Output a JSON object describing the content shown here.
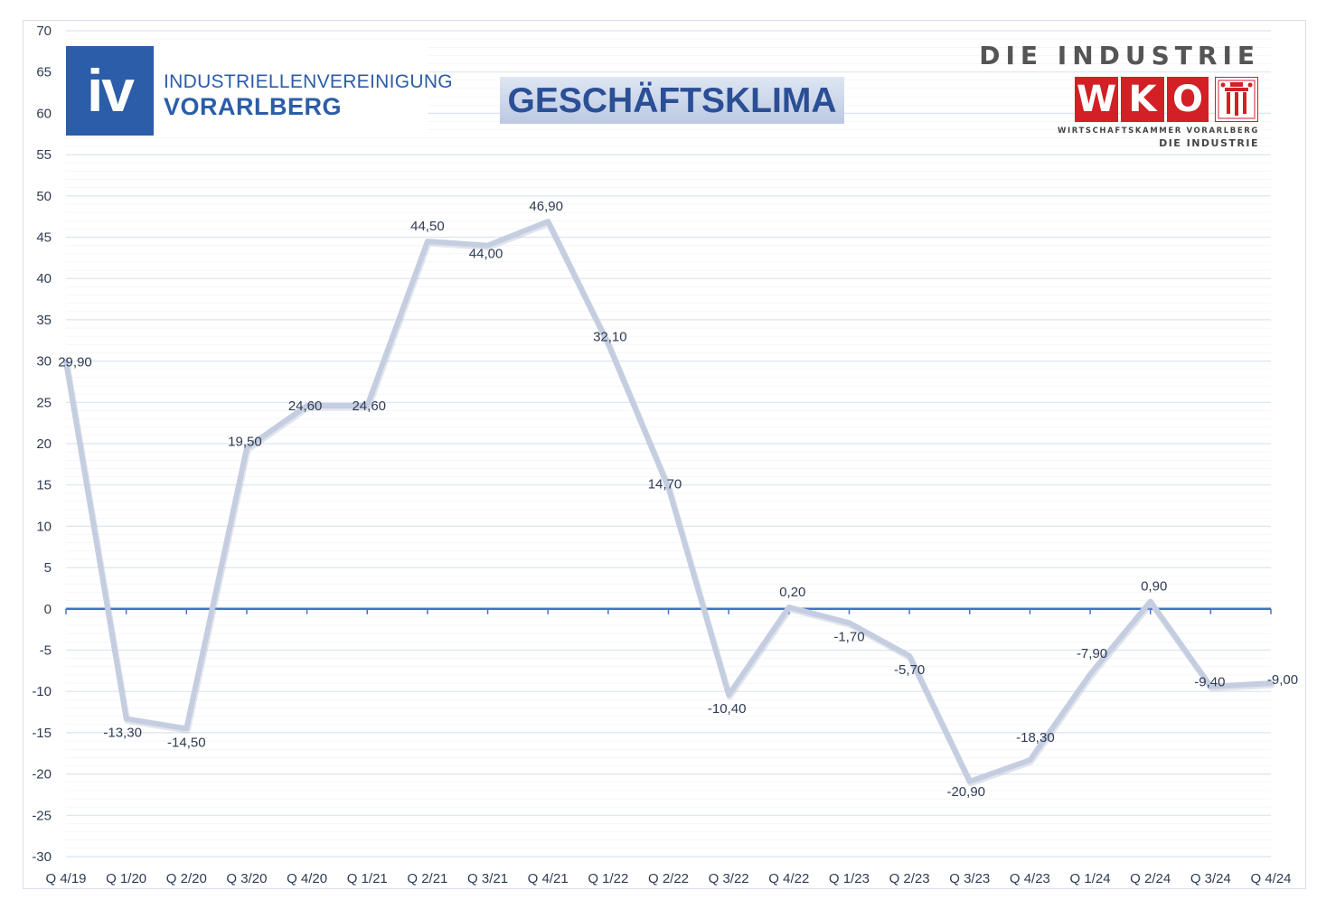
{
  "header": {
    "iv_logo_mark": "iv",
    "iv_line1": "INDUSTRIELLENVEREINIGUNG",
    "iv_line2": "VORARLBERG",
    "title": "GESCHÄFTSKLIMA",
    "wko_top": "DIE INDUSTRIE",
    "wko_letters": [
      "W",
      "K",
      "O"
    ],
    "wko_sub1": "WIRTSCHAFTSKAMMER VORARLBERG",
    "wko_sub2": "DIE INDUSTRIE"
  },
  "colors": {
    "line": "#c5cde0",
    "zero_axis": "#4472c4",
    "grid": "#dce4f0",
    "iv_blue": "#2b5da8",
    "wko_red": "#d31f26"
  },
  "chart_data": {
    "type": "line",
    "title": "GESCHÄFTSKLIMA",
    "categories": [
      "Q 4/19",
      "Q 1/20",
      "Q 2/20",
      "Q 3/20",
      "Q 4/20",
      "Q 1/21",
      "Q 2/21",
      "Q 3/21",
      "Q 4/21",
      "Q 1/22",
      "Q 2/22",
      "Q 3/22",
      "Q 4/22",
      "Q 1/23",
      "Q 2/23",
      "Q 3/23",
      "Q 4/23",
      "Q 1/24",
      "Q 2/24",
      "Q 3/24",
      "Q 4/24"
    ],
    "values": [
      29.9,
      -13.3,
      -14.5,
      19.5,
      24.6,
      24.6,
      44.5,
      44.0,
      46.9,
      32.1,
      14.7,
      -10.4,
      0.2,
      -1.7,
      -5.7,
      -20.9,
      -18.3,
      -7.9,
      0.9,
      -9.4,
      -9.0
    ],
    "data_labels": [
      "29,90",
      "-13,30",
      "-14,50",
      "19,50",
      "24,60",
      "24,60",
      "44,50",
      "44,00",
      "46,90",
      "32,10",
      "14,70",
      "-10,40",
      "0,20",
      "-1,70",
      "-5,70",
      "-20,90",
      "-18,30",
      "-7,90",
      "0,90",
      "-9,40",
      "-9,00"
    ],
    "ylim": [
      -30,
      70
    ],
    "yticks": [
      70,
      65,
      60,
      55,
      50,
      45,
      40,
      35,
      30,
      25,
      20,
      15,
      10,
      5,
      0,
      -5,
      -10,
      -15,
      -20,
      -25,
      -30
    ],
    "grid": true,
    "legend": "none"
  }
}
